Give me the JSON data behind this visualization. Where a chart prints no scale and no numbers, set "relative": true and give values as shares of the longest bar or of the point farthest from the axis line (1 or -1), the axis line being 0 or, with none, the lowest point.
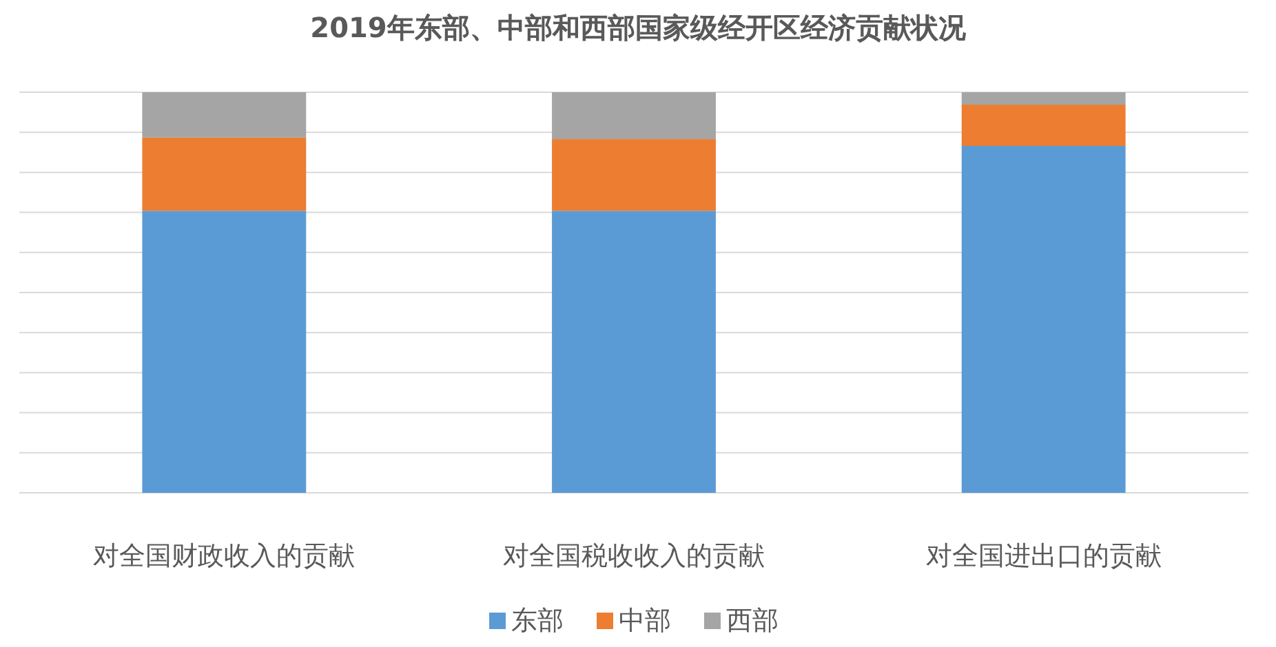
{
  "chart_data": {
    "type": "bar",
    "title": "2019年东部、中部和西部国家级经开区经济贡献状况",
    "categories": [
      "对全国财政收入的贡献",
      "对全国税收收入的贡献",
      "对全国进出口的贡献"
    ],
    "stacked": true,
    "relative": true,
    "grid": "y",
    "legend": "bottom",
    "series": [
      {
        "name": "东部",
        "color": "#5b9bd5",
        "values": [
          0.704,
          0.704,
          0.866
        ]
      },
      {
        "name": "中部",
        "color": "#ed7d31",
        "values": [
          0.183,
          0.179,
          0.103
        ]
      },
      {
        "name": "西部",
        "color": "#a5a5a5",
        "values": [
          0.113,
          0.117,
          0.031
        ]
      }
    ]
  }
}
